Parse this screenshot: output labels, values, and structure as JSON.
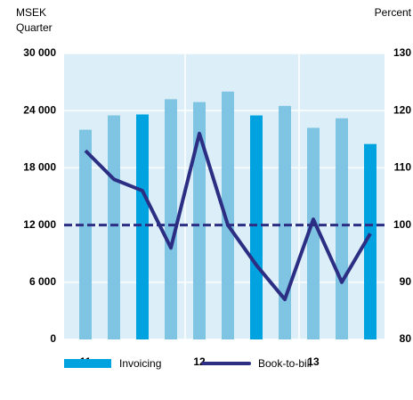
{
  "chart_data": {
    "type": "bar_line",
    "y_axis_label": "MSEK",
    "x_axis_label": "Quarter",
    "y2_axis_label": "Percent",
    "categories": [
      "11",
      null,
      null,
      null,
      "12",
      null,
      null,
      null,
      "13",
      null,
      null
    ],
    "series": [
      {
        "name": "Invoicing",
        "color": "#00a3e0",
        "type": "bar",
        "values": [
          22000,
          23500,
          23600,
          25200,
          24900,
          26000,
          23500,
          24500,
          22200,
          23200,
          20500
        ],
        "colors": [
          "#7fc4e3",
          "#7fc4e3",
          "#00a3e0",
          "#7fc4e3",
          "#7fc4e3",
          "#7fc4e3",
          "#00a3e0",
          "#7fc4e3",
          "#7fc4e3",
          "#7fc4e3",
          "#00a3e0"
        ]
      },
      {
        "name": "Book-to-bill",
        "color": "#2b2e83",
        "type": "line",
        "axis": "y2",
        "values": [
          113,
          108,
          106,
          96,
          116,
          100,
          93,
          87,
          101,
          90,
          98.5
        ]
      }
    ],
    "reference_line": 12000,
    "ylim": [
      0,
      30000
    ],
    "yticks": [
      {
        "value": 0,
        "label": "0"
      },
      {
        "value": 6000,
        "label": "6 000"
      },
      {
        "value": 12000,
        "label": "12 000"
      },
      {
        "value": 18000,
        "label": "18 000"
      },
      {
        "value": 24000,
        "label": "24 000"
      },
      {
        "value": 30000,
        "label": "30 000"
      }
    ],
    "y2lim": [
      80,
      130
    ],
    "y2ticks": [
      80,
      90,
      100,
      110,
      120,
      130
    ],
    "grid": true
  }
}
